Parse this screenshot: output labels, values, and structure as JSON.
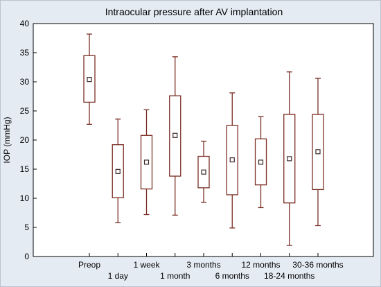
{
  "chart_data": {
    "type": "box",
    "title": "Intraocular pressure after AV implantation",
    "ylabel": "IOP (mmHg)",
    "xlabel": "",
    "ylim": [
      0,
      40
    ],
    "yticks": [
      0,
      5,
      10,
      15,
      20,
      25,
      30,
      35,
      40
    ],
    "grid": false,
    "categories": [
      "Preop",
      "1 day",
      "1 week",
      "1 month",
      "3 months",
      "6 months",
      "12 months",
      "18-24 months",
      "30-36 months"
    ],
    "boxes": [
      {
        "category": "Preop",
        "whisker_low": 22.7,
        "q1": 26.5,
        "median": 30.4,
        "q3": 34.5,
        "whisker_high": 38.2
      },
      {
        "category": "1 day",
        "whisker_low": 5.8,
        "q1": 10.1,
        "median": 14.6,
        "q3": 19.2,
        "whisker_high": 23.6
      },
      {
        "category": "1 week",
        "whisker_low": 7.2,
        "q1": 11.6,
        "median": 16.2,
        "q3": 20.8,
        "whisker_high": 25.2
      },
      {
        "category": "1 month",
        "whisker_low": 7.1,
        "q1": 13.8,
        "median": 20.8,
        "q3": 27.6,
        "whisker_high": 34.3
      },
      {
        "category": "3 months",
        "whisker_low": 9.3,
        "q1": 11.8,
        "median": 14.5,
        "q3": 17.2,
        "whisker_high": 19.8
      },
      {
        "category": "6 months",
        "whisker_low": 4.9,
        "q1": 10.6,
        "median": 16.6,
        "q3": 22.5,
        "whisker_high": 28.1
      },
      {
        "category": "12 months",
        "whisker_low": 8.4,
        "q1": 12.3,
        "median": 16.2,
        "q3": 20.2,
        "whisker_high": 24.0
      },
      {
        "category": "18-24 months",
        "whisker_low": 1.9,
        "q1": 9.2,
        "median": 16.8,
        "q3": 24.4,
        "whisker_high": 31.7
      },
      {
        "category": "30-36 months",
        "whisker_low": 5.3,
        "q1": 11.5,
        "median": 18.0,
        "q3": 24.4,
        "whisker_high": 30.6
      }
    ],
    "colors": {
      "box": "#7a2e24",
      "axis": "#000000",
      "plot_bg": "#ffffff",
      "outer_bg": "#e4ebf3"
    }
  }
}
